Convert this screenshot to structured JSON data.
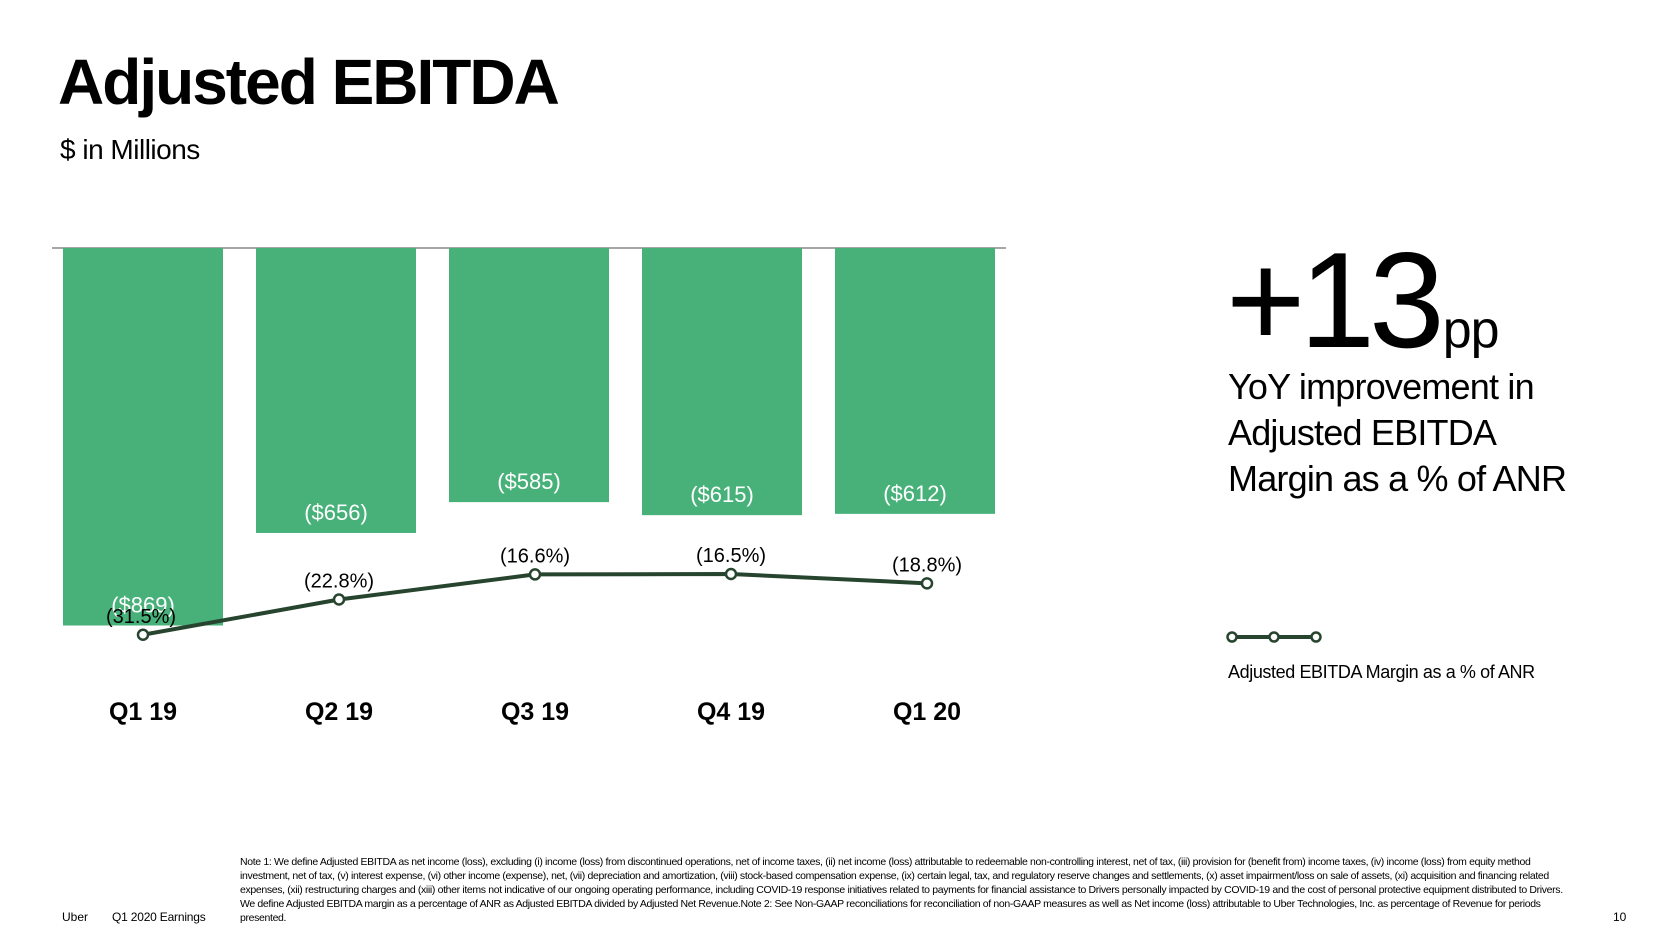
{
  "title": "Adjusted EBITDA",
  "subtitle": "$ in Millions",
  "colors": {
    "bar": "#48b17a",
    "line": "#27452e",
    "axis": "#888888",
    "bar_label": "#ffffff"
  },
  "callout": {
    "value": "+13",
    "unit": "pp",
    "text": "YoY improvement in Adjusted EBITDA Margin as a % of ANR"
  },
  "chart_data": {
    "type": "bar",
    "categories": [
      "Q1 19",
      "Q2 19",
      "Q3 19",
      "Q4 19",
      "Q1 20"
    ],
    "ylim": [
      -1000,
      0
    ],
    "grid": false,
    "legend_position": "right",
    "series": [
      {
        "values": [
          -869,
          -656,
          -585,
          -615,
          -612
        ],
        "labels": [
          "($869)",
          "($656)",
          "($585)",
          "($615)",
          "($612)"
        ]
      },
      {
        "type": "line",
        "name": "Adjusted EBITDA Margin as a % of ANR",
        "values": [
          -31.5,
          -22.8,
          -16.6,
          -16.5,
          -18.8
        ],
        "labels": [
          "(31.5%)",
          "(22.8%)",
          "(16.6%)",
          "(16.5%)",
          "(18.8%)"
        ]
      }
    ]
  },
  "footer": {
    "brand": "Uber",
    "deck": "Q1 2020 Earnings",
    "page": "10",
    "note": "Note 1: We define Adjusted EBITDA as net income (loss), excluding (i) income (loss) from discontinued operations, net of income taxes, (ii) net income (loss) attributable to redeemable non-controlling interest, net of tax, (iii) provision for (benefit from) income taxes, (iv) income (loss) from equity method investment, net of tax, (v) interest expense, (vi) other income (expense), net, (vii) depreciation and amortization, (viii) stock-based compensation expense, (ix) certain legal, tax, and regulatory reserve changes and settlements, (x) asset impairment/loss on sale of assets, (xi) acquisition and financing related expenses, (xii) restructuring charges and (xiii) other items not indicative of our ongoing operating performance, including COVID-19 response initiatives related to payments for financial assistance to Drivers personally impacted by COVID-19 and the cost of personal protective equipment distributed to Drivers. We define Adjusted EBITDA margin as a percentage of ANR as Adjusted EBITDA divided by Adjusted Net Revenue.Note 2: See Non-GAAP reconciliations for reconciliation of non-GAAP measures as well as Net income (loss) attributable to Uber Technologies, Inc. as percentage of Revenue for periods presented."
  }
}
